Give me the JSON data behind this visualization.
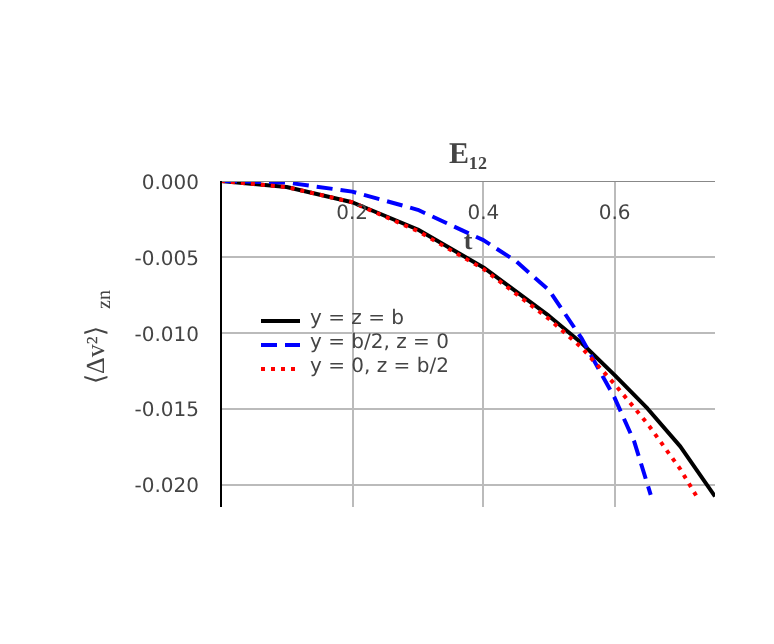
{
  "chart_data": {
    "type": "line",
    "title": "E₁₂",
    "xlabel": "t",
    "ylabel": "⟨Δv²⟩$_{zn}$",
    "xlim": [
      0,
      0.753
    ],
    "ylim": [
      -0.0215,
      0
    ],
    "xticks": [
      0.2,
      0.4,
      0.6
    ],
    "yticks": [
      {
        "value": 0,
        "label": "0.000"
      },
      {
        "value": -0.005,
        "label": "-0.005"
      },
      {
        "value": -0.01,
        "label": "-0.010"
      },
      {
        "value": -0.015,
        "label": "-0.015"
      },
      {
        "value": -0.02,
        "label": "-0.020"
      }
    ],
    "grid": true,
    "legend": "left",
    "marker": "none",
    "series": [
      {
        "name": "y = z = b",
        "color": "#000000",
        "line_style": "solid",
        "x": [
          0,
          0.1,
          0.2,
          0.3,
          0.4,
          0.5,
          0.55,
          0.6,
          0.65,
          0.7,
          0.753
        ],
        "values": [
          0,
          -0.0004,
          -0.0014,
          -0.0032,
          -0.0057,
          -0.0089,
          -0.0107,
          -0.0128,
          -0.015,
          -0.0175,
          -0.0208
        ]
      },
      {
        "name": "y = b/2, z = 0",
        "color": "#0000ff",
        "line_style": "dashed",
        "x": [
          0,
          0.1,
          0.2,
          0.3,
          0.4,
          0.45,
          0.5,
          0.55,
          0.6,
          0.63,
          0.655
        ],
        "values": [
          0,
          -0.0001,
          -0.0007,
          -0.0019,
          -0.0039,
          -0.0053,
          -0.0072,
          -0.0104,
          -0.0143,
          -0.0172,
          -0.0207
        ]
      },
      {
        "name": "y = 0, z = b/2",
        "color": "#ff0000",
        "line_style": "dotted",
        "x": [
          0,
          0.1,
          0.2,
          0.3,
          0.4,
          0.5,
          0.55,
          0.6,
          0.65,
          0.7,
          0.725
        ],
        "values": [
          0,
          -0.0004,
          -0.0014,
          -0.0033,
          -0.0058,
          -0.0091,
          -0.011,
          -0.0134,
          -0.016,
          -0.019,
          -0.0208
        ]
      }
    ]
  }
}
